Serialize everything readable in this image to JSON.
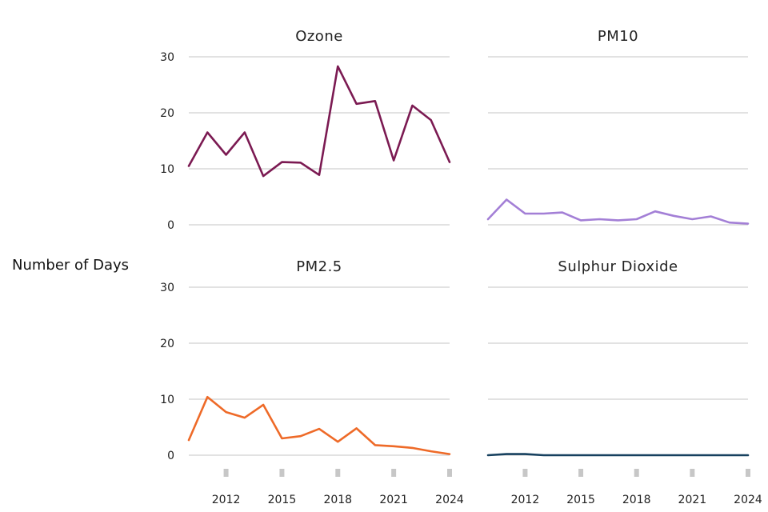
{
  "y_axis_label": "Number of Days",
  "chart_data": {
    "type": "line",
    "layout": "small-multiples-2x2",
    "ylabel": "Number of Days",
    "ylim": [
      0,
      30
    ],
    "yticks": [
      0,
      10,
      20,
      30
    ],
    "x": [
      2010,
      2011,
      2012,
      2013,
      2014,
      2015,
      2016,
      2017,
      2018,
      2019,
      2020,
      2021,
      2022,
      2023,
      2024
    ],
    "xticks": [
      2012,
      2015,
      2018,
      2021,
      2024
    ],
    "xlim": [
      2010,
      2024
    ],
    "grid": true,
    "panels": [
      {
        "title": "Ozone",
        "color": "#7b1a52",
        "values": [
          10.5,
          16.5,
          12.5,
          16.5,
          8.7,
          11.2,
          11.1,
          8.9,
          28.3,
          21.6,
          22.1,
          11.5,
          21.3,
          18.7,
          11.2
        ]
      },
      {
        "title": "PM10",
        "color": "#a37fd6",
        "values": [
          1.0,
          4.5,
          2.0,
          2.0,
          2.2,
          0.8,
          1.0,
          0.8,
          1.0,
          2.4,
          1.6,
          1.0,
          1.5,
          0.4,
          0.2
        ]
      },
      {
        "title": "PM2.5",
        "color": "#ee6a28",
        "values": [
          2.7,
          10.4,
          7.7,
          6.7,
          9.0,
          3.0,
          3.4,
          4.7,
          2.4,
          4.8,
          1.8,
          1.6,
          1.3,
          0.7,
          0.2
        ]
      },
      {
        "title": "Sulphur Dioxide",
        "color": "#17415f",
        "values": [
          0.0,
          0.2,
          0.2,
          0.0,
          0.0,
          0.0,
          0.0,
          0.0,
          0.0,
          0.0,
          0.0,
          0.0,
          0.0,
          0.0,
          0.0
        ]
      }
    ]
  }
}
